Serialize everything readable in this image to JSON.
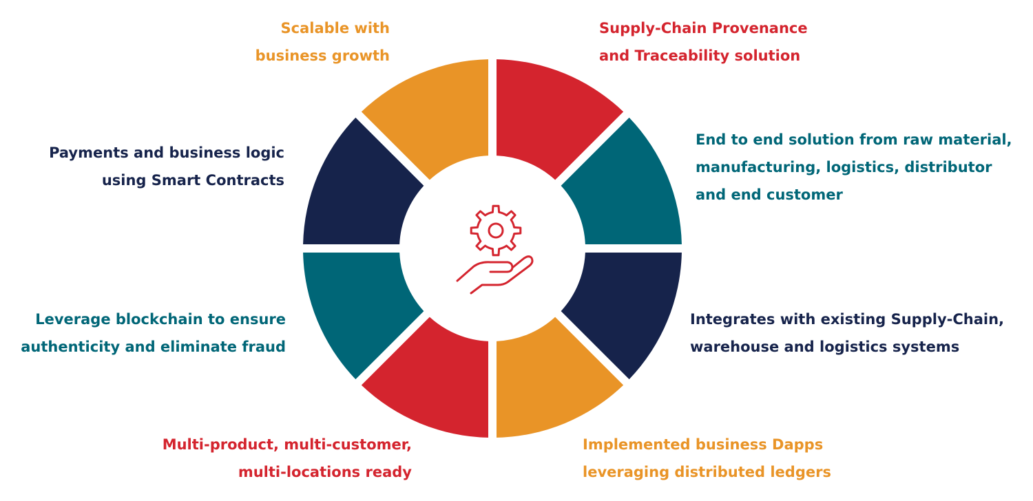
{
  "colors": {
    "red": "#D4242E",
    "teal": "#006677",
    "navy": "#16234B",
    "orange": "#E99427"
  },
  "center_icon": "gear-in-hand-icon",
  "segments": [
    {
      "id": "top-right",
      "color": "red"
    },
    {
      "id": "right-top",
      "color": "teal"
    },
    {
      "id": "right-bottom",
      "color": "navy"
    },
    {
      "id": "bottom-right",
      "color": "orange"
    },
    {
      "id": "bottom-left",
      "color": "red"
    },
    {
      "id": "left-bottom",
      "color": "teal"
    },
    {
      "id": "left-top",
      "color": "navy"
    },
    {
      "id": "top-left",
      "color": "orange"
    }
  ],
  "labels": {
    "supply_chain": {
      "line1": "Supply-Chain Provenance",
      "line2": "and Traceability solution",
      "color": "red"
    },
    "end_to_end": {
      "line1": "End to end solution from raw material,",
      "line2": "manufacturing, logistics, distributor",
      "line3": "and end customer",
      "color": "teal"
    },
    "integrates": {
      "line1": "Integrates with existing Supply-Chain,",
      "line2": "warehouse and logistics systems",
      "color": "navy"
    },
    "dapps": {
      "line1": "Implemented business Dapps",
      "line2": "leveraging distributed ledgers",
      "color": "orange"
    },
    "multi_product": {
      "line1": "Multi-product, multi-customer,",
      "line2": "multi-locations ready",
      "color": "red"
    },
    "blockchain": {
      "line1": "Leverage blockchain to ensure",
      "line2": "authenticity and eliminate fraud",
      "color": "teal"
    },
    "payments": {
      "line1": "Payments and business logic",
      "line2": "using Smart Contracts",
      "color": "navy"
    },
    "scalable": {
      "line1": "Scalable with",
      "line2": "business growth",
      "color": "orange"
    }
  }
}
